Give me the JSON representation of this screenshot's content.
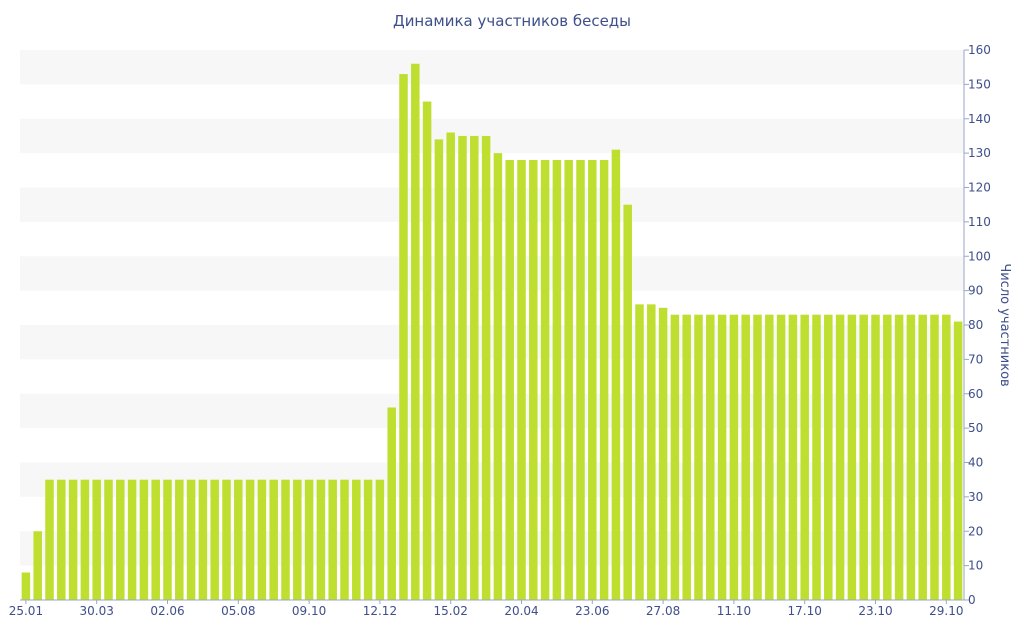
{
  "chart_data": {
    "type": "bar",
    "title": "Динамика участников беседы",
    "ylabel": "Число участников",
    "xlabel": "",
    "ylim": [
      0,
      160
    ],
    "y_ticks": [
      0,
      10,
      20,
      30,
      40,
      50,
      60,
      70,
      80,
      90,
      100,
      110,
      120,
      130,
      140,
      150,
      160
    ],
    "y_axis_position": "right",
    "x_tick_labels": [
      {
        "index": 0,
        "label": "25.01"
      },
      {
        "index": 6,
        "label": "30.03"
      },
      {
        "index": 12,
        "label": "02.06"
      },
      {
        "index": 18,
        "label": "05.08"
      },
      {
        "index": 24,
        "label": "09.10"
      },
      {
        "index": 30,
        "label": "12.12"
      },
      {
        "index": 36,
        "label": "15.02"
      },
      {
        "index": 42,
        "label": "20.04"
      },
      {
        "index": 48,
        "label": "23.06"
      },
      {
        "index": 54,
        "label": "27.08"
      },
      {
        "index": 60,
        "label": "11.10"
      },
      {
        "index": 66,
        "label": "17.10"
      },
      {
        "index": 72,
        "label": "23.10"
      },
      {
        "index": 78,
        "label": "29.10"
      }
    ],
    "values": [
      8,
      20,
      35,
      35,
      35,
      35,
      35,
      35,
      35,
      35,
      35,
      35,
      35,
      35,
      35,
      35,
      35,
      35,
      35,
      35,
      35,
      35,
      35,
      35,
      35,
      35,
      35,
      35,
      35,
      35,
      35,
      56,
      153,
      156,
      145,
      134,
      136,
      135,
      135,
      135,
      130,
      128,
      128,
      128,
      128,
      128,
      128,
      128,
      128,
      128,
      131,
      115,
      86,
      86,
      85,
      83,
      83,
      83,
      83,
      83,
      83,
      83,
      83,
      83,
      83,
      83,
      83,
      83,
      83,
      83,
      83,
      83,
      83,
      83,
      83,
      83,
      83,
      83,
      83,
      81
    ],
    "bar_color": "#bedf2f",
    "band_color": "#f7f7f7",
    "grid": "alternating-bands"
  }
}
